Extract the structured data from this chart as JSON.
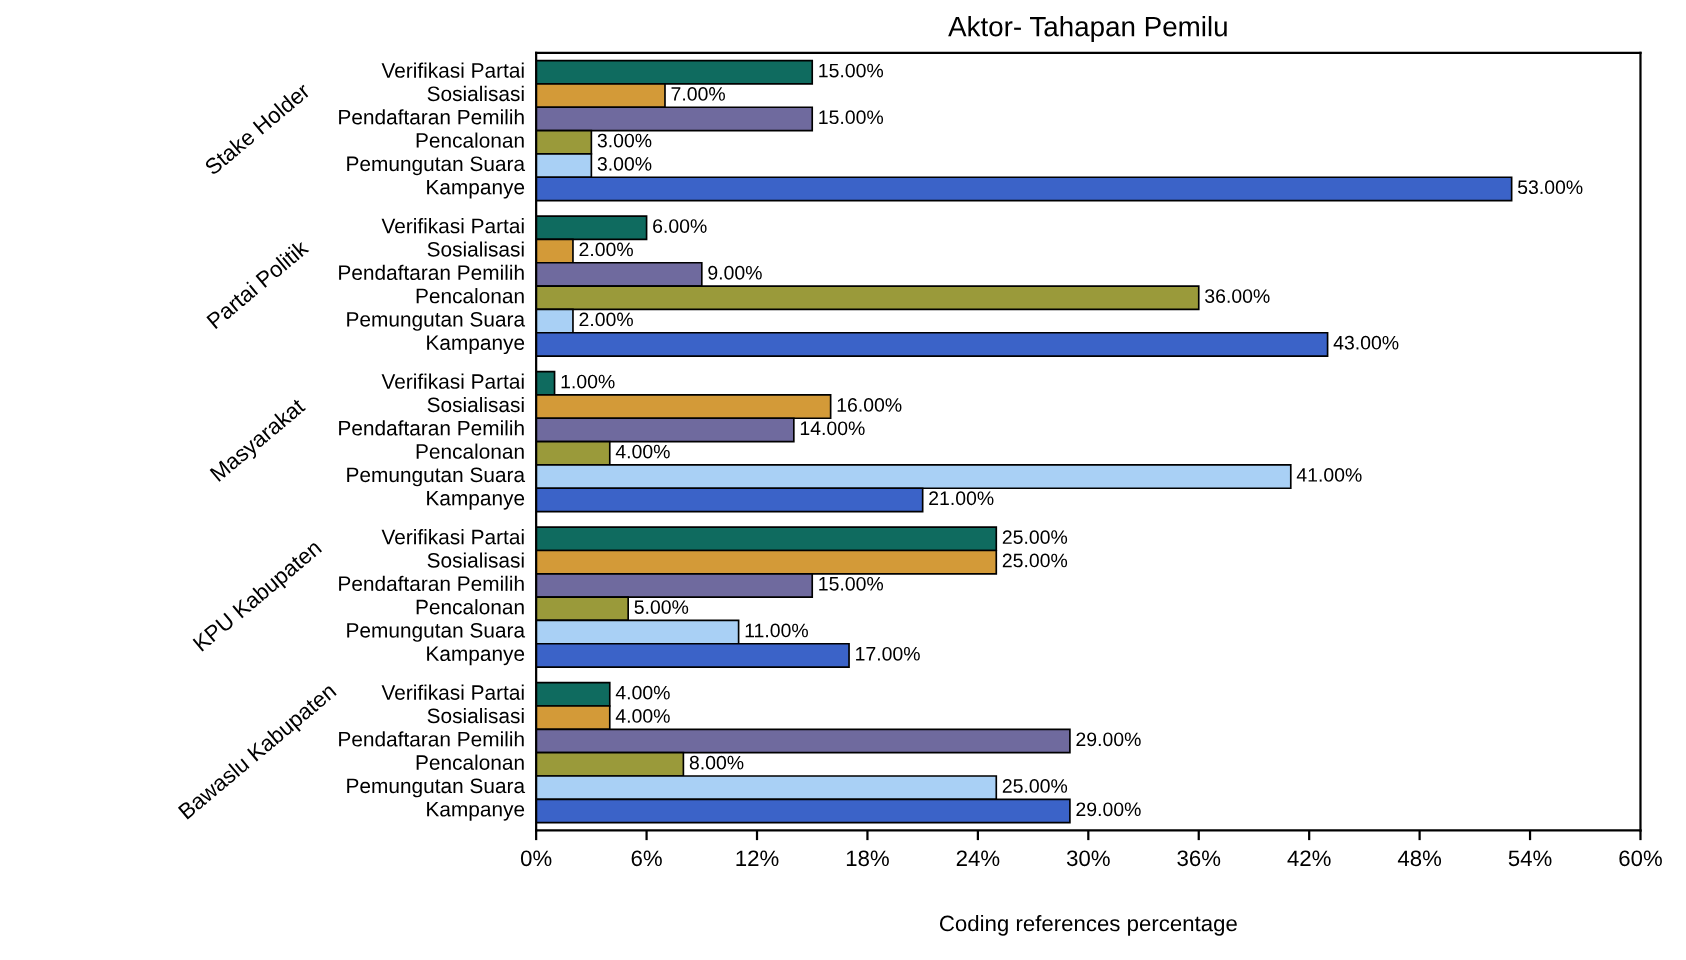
{
  "chart_data": {
    "type": "bar",
    "orientation": "horizontal",
    "title": "Aktor- Tahapan Pemilu",
    "xlabel": "Coding references percentage",
    "categories": [
      "Stake Holder",
      "Partai Politik",
      "Masyarakat",
      "KPU Kabupaten",
      "Bawaslu Kabupaten"
    ],
    "series": [
      {
        "name": "Verifikasi Partai",
        "color": "#0f6b5f",
        "values": [
          15,
          6,
          1,
          25,
          4
        ],
        "value_labels": [
          "15.00%",
          "6.00%",
          "1.00%",
          "25.00%",
          "4.00%"
        ]
      },
      {
        "name": "Sosialisasi",
        "color": "#d39a38",
        "values": [
          7,
          2,
          16,
          25,
          4
        ],
        "value_labels": [
          "7.00%",
          "2.00%",
          "16.00%",
          "25.00%",
          "4.00%"
        ]
      },
      {
        "name": "Pendaftaran Pemilih",
        "color": "#6f6a9e",
        "values": [
          15,
          9,
          14,
          15,
          29
        ],
        "value_labels": [
          "15.00%",
          "9.00%",
          "14.00%",
          "15.00%",
          "29.00%"
        ]
      },
      {
        "name": "Pencalonan",
        "color": "#9a9a3a",
        "values": [
          3,
          36,
          4,
          5,
          8
        ],
        "value_labels": [
          "3.00%",
          "36.00%",
          "4.00%",
          "5.00%",
          "8.00%"
        ]
      },
      {
        "name": "Pemungutan Suara",
        "color": "#a9d0f5",
        "values": [
          3,
          2,
          41,
          11,
          25
        ],
        "value_labels": [
          "3.00%",
          "2.00%",
          "41.00%",
          "11.00%",
          "25.00%"
        ]
      },
      {
        "name": "Kampanye",
        "color": "#3b63c8",
        "values": [
          53,
          43,
          21,
          17,
          29
        ],
        "value_labels": [
          "53.00%",
          "43.00%",
          "21.00%",
          "17.00%",
          "29.00%"
        ]
      }
    ],
    "xlim": [
      0,
      60
    ],
    "xticks": [
      {
        "value": 0,
        "label": "0%"
      },
      {
        "value": 6,
        "label": "6%"
      },
      {
        "value": 12,
        "label": "12%"
      },
      {
        "value": 18,
        "label": "18%"
      },
      {
        "value": 24,
        "label": "24%"
      },
      {
        "value": 30,
        "label": "30%"
      },
      {
        "value": 36,
        "label": "36%"
      },
      {
        "value": 42,
        "label": "42%"
      },
      {
        "value": 48,
        "label": "48%"
      },
      {
        "value": 54,
        "label": "54%"
      },
      {
        "value": 60,
        "label": "60%"
      }
    ],
    "legend": false
  }
}
